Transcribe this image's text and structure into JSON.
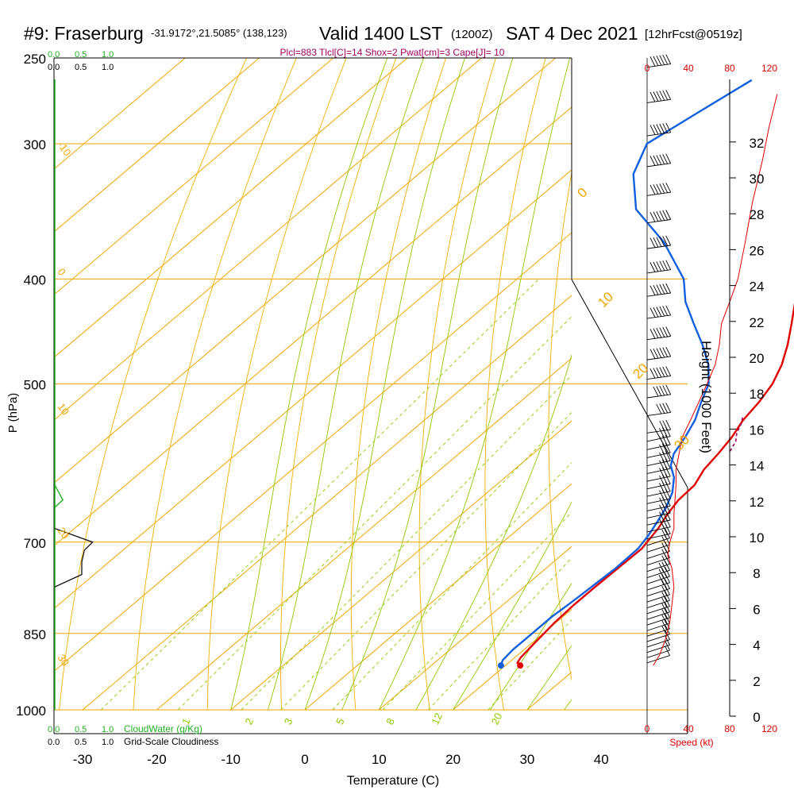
{
  "header": {
    "station": "#9: Fraserburg",
    "coords": "-31.9172°,21.5085° (138,123)",
    "valid": "Valid 1400 LST",
    "zulu": "(1200Z)",
    "date": "SAT 4 Dec 2021",
    "forecast": "[12hrFcst@0519z]",
    "params": "Plcl=883 Tlcl[C]=14 Shox=2 Pwat[cm]=3 Cape[J]= 10"
  },
  "colors": {
    "isobar": "#f0a500",
    "dry_adiabat": "#f0b000",
    "moist_adiabat": "#90c800",
    "mixing_ratio": "#90c800",
    "temperature": "#e00000",
    "dewpoint": "#1060e0",
    "parcel": "#a00060",
    "cloud": "#20b020",
    "speed": "#e00000",
    "params": "#a00060"
  },
  "scales": {
    "cloudwater_ticks": [
      "0.0",
      "0.5",
      "1.0"
    ],
    "cloudiness_ticks": [
      "0.0",
      "0.5",
      "1.0"
    ],
    "cloudwater_label": "CloudWater (g/Kg)",
    "cloudiness_label": "Grid-Scale Cloudiness",
    "speed_ticks": [
      "0",
      "40",
      "80",
      "120"
    ],
    "speed_label": "Speed (kt)"
  },
  "chart_data": {
    "type": "line",
    "title": "#9: Fraserburg",
    "xlabel": "Temperature (C)",
    "ylabel": "P (hPa)",
    "y2label": "Height (1000 Feet)",
    "xlim": [
      -34,
      46
    ],
    "ylim": [
      1000,
      250
    ],
    "y_scale": "log",
    "x_ticks": [
      -30,
      -20,
      -10,
      0,
      10,
      20,
      30,
      40
    ],
    "pressure_ticks": [
      250,
      300,
      400,
      500,
      700,
      850,
      1000
    ],
    "height_ticks": [
      0,
      2,
      4,
      6,
      8,
      10,
      12,
      14,
      16,
      18,
      20,
      22,
      24,
      26,
      28,
      30,
      32
    ],
    "isotherm_labels": [
      -40,
      -30,
      -20,
      -10,
      0,
      10,
      20,
      30
    ],
    "mixing_ratio_labels": [
      1,
      2,
      3,
      5,
      8,
      12,
      20
    ],
    "series": [
      {
        "name": "temperature",
        "values": [
          [
            910,
            22
          ],
          [
            905,
            21.2
          ],
          [
            895,
            20.8
          ],
          [
            870,
            20.4
          ],
          [
            850,
            20.1
          ],
          [
            830,
            19.8
          ],
          [
            800,
            19.6
          ],
          [
            770,
            19.6
          ],
          [
            740,
            19.7
          ],
          [
            710,
            19.8
          ],
          [
            680,
            18.8
          ],
          [
            660,
            17.8
          ],
          [
            640,
            17.0
          ],
          [
            620,
            16.8
          ],
          [
            600,
            15.6
          ],
          [
            580,
            15.0
          ],
          [
            560,
            14.2
          ],
          [
            540,
            13.0
          ],
          [
            520,
            12.3
          ],
          [
            500,
            11.2
          ],
          [
            480,
            9.4
          ],
          [
            460,
            7.0
          ],
          [
            440,
            4.2
          ],
          [
            420,
            1.2
          ],
          [
            400,
            -2.0
          ],
          [
            370,
            -6.0
          ],
          [
            340,
            -10.5
          ],
          [
            310,
            -15.5
          ],
          [
            290,
            -19.3
          ],
          [
            270,
            -23.2
          ]
        ]
      },
      {
        "name": "dewpoint",
        "values": [
          [
            910,
            19.4
          ],
          [
            900,
            18.8
          ],
          [
            880,
            18.5
          ],
          [
            850,
            18.5
          ],
          [
            820,
            18.5
          ],
          [
            800,
            18.8
          ],
          [
            780,
            19.0
          ],
          [
            760,
            19.2
          ],
          [
            740,
            19.4
          ],
          [
            710,
            19.3
          ],
          [
            690,
            18.6
          ],
          [
            670,
            17.6
          ],
          [
            650,
            16.5
          ],
          [
            630,
            15.0
          ],
          [
            610,
            12.8
          ],
          [
            595,
            10.5
          ],
          [
            580,
            9.0
          ],
          [
            560,
            7.9
          ],
          [
            540,
            6.5
          ],
          [
            520,
            4.5
          ],
          [
            500,
            2.6
          ],
          [
            480,
            -0.5
          ],
          [
            460,
            -4.5
          ],
          [
            440,
            -9.0
          ],
          [
            420,
            -13.6
          ],
          [
            400,
            -17.5
          ],
          [
            370,
            -26.0
          ],
          [
            345,
            -35.0
          ],
          [
            320,
            -41.0
          ],
          [
            300,
            -44.0
          ],
          [
            280,
            -42.0
          ],
          [
            262,
            -40.0
          ]
        ]
      },
      {
        "name": "parcel",
        "values": [
          [
            577,
            16.2
          ],
          [
            565,
            15.4
          ],
          [
            555,
            14.2
          ],
          [
            545,
            13.4
          ],
          [
            535,
            12.3
          ]
        ]
      }
    ],
    "surface_temperature": 22,
    "surface_dewpoint": 19.4,
    "surface_pressure": 910,
    "cloud_water_profile": [
      [
        620,
        0.0
      ],
      [
        640,
        0.15
      ],
      [
        650,
        0.0
      ]
    ],
    "cloudiness_profile": [
      [
        680,
        0.0
      ],
      [
        700,
        0.7
      ],
      [
        712,
        0.55
      ],
      [
        730,
        0.5
      ],
      [
        750,
        0.5
      ],
      [
        770,
        0.0
      ]
    ],
    "wind_speed_profile": [
      [
        910,
        6
      ],
      [
        890,
        12
      ],
      [
        860,
        18
      ],
      [
        830,
        22
      ],
      [
        800,
        24
      ],
      [
        770,
        26
      ],
      [
        740,
        24
      ],
      [
        720,
        20
      ],
      [
        700,
        22
      ],
      [
        680,
        26
      ],
      [
        660,
        26
      ],
      [
        640,
        27
      ],
      [
        620,
        28
      ],
      [
        600,
        28
      ],
      [
        560,
        34
      ],
      [
        540,
        42
      ],
      [
        520,
        50
      ],
      [
        500,
        58
      ],
      [
        480,
        66
      ],
      [
        460,
        70
      ],
      [
        440,
        72
      ],
      [
        420,
        80
      ],
      [
        400,
        88
      ],
      [
        370,
        95
      ],
      [
        340,
        102
      ],
      [
        310,
        112
      ],
      [
        290,
        118
      ],
      [
        270,
        126
      ]
    ]
  }
}
